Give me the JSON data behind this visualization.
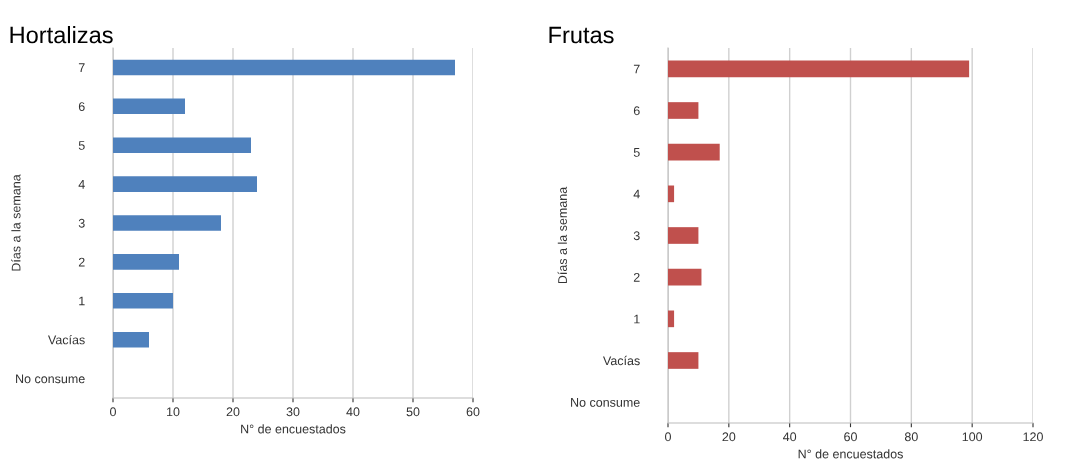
{
  "chart_data": [
    {
      "type": "bar",
      "orientation": "horizontal",
      "title": "Hortalizas",
      "xlabel": "N° de encuestados",
      "ylabel": "Días a la semana",
      "categories": [
        "7",
        "6",
        "5",
        "4",
        "3",
        "2",
        "1",
        "Vacías",
        "No consume"
      ],
      "values": [
        57,
        12,
        23,
        24,
        18,
        11,
        10,
        6,
        0
      ],
      "color": "#4f81bd",
      "xlim": [
        0,
        60
      ],
      "xticks": [
        0,
        10,
        20,
        30,
        40,
        50,
        60
      ],
      "grid": "x",
      "legend": false
    },
    {
      "type": "bar",
      "orientation": "horizontal",
      "title": "Frutas",
      "xlabel": "N° de encuestados",
      "ylabel": "Días a la semana",
      "categories": [
        "7",
        "6",
        "5",
        "4",
        "3",
        "2",
        "1",
        "Vacías",
        "No consume"
      ],
      "values": [
        99,
        10,
        17,
        2,
        10,
        11,
        2,
        10,
        0
      ],
      "color": "#c0504d",
      "xlim": [
        0,
        120
      ],
      "xticks": [
        0,
        20,
        40,
        60,
        80,
        100,
        120
      ],
      "grid": "x",
      "legend": false
    }
  ]
}
